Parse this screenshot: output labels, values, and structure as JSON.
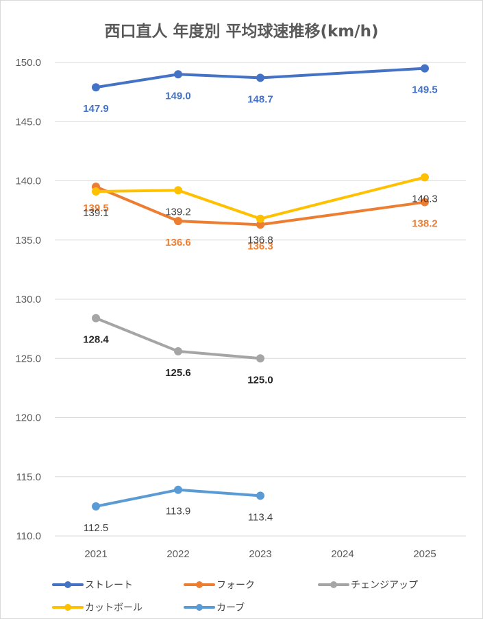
{
  "chart_data": {
    "type": "line",
    "title": "西口直人 年度別 平均球速推移(km/h)",
    "categories": [
      "2021",
      "2022",
      "2023",
      "2024",
      "2025"
    ],
    "ylim": [
      110.0,
      150.0
    ],
    "yticks": [
      "150.0",
      "145.0",
      "140.0",
      "135.0",
      "130.0",
      "125.0",
      "120.0",
      "115.0",
      "110.0"
    ],
    "grid": true,
    "legend_position": "bottom",
    "series": [
      {
        "name": "ストレート",
        "color": "#4472c4",
        "values": [
          147.9,
          149.0,
          148.7,
          null,
          149.5
        ],
        "labels": [
          "147.9",
          "149.0",
          "148.7",
          null,
          "149.5"
        ],
        "label_color": "#4472c4",
        "label_bold": true,
        "label_pos": "below"
      },
      {
        "name": "フォーク",
        "color": "#ed7d31",
        "values": [
          139.5,
          136.6,
          136.3,
          null,
          138.2
        ],
        "labels": [
          "139.5",
          "136.6",
          "136.3",
          null,
          "138.2"
        ],
        "label_color": "#ed7d31",
        "label_bold": true,
        "label_pos": "below"
      },
      {
        "name": "チェンジアップ",
        "color": "#a5a5a5",
        "values": [
          128.4,
          125.6,
          125.0,
          null,
          null
        ],
        "labels": [
          "128.4",
          "125.6",
          "125.0",
          null,
          null
        ],
        "label_color": "#262626",
        "label_bold": true,
        "label_pos": "below"
      },
      {
        "name": "カットボール",
        "color": "#ffc000",
        "values": [
          139.1,
          139.2,
          136.8,
          null,
          140.3
        ],
        "labels": [
          "139.1",
          "139.2",
          "136.8",
          null,
          "140.3"
        ],
        "label_color": "#404040",
        "label_bold": false,
        "label_pos": "below"
      },
      {
        "name": "カーブ",
        "color": "#5b9bd5",
        "values": [
          112.5,
          113.9,
          113.4,
          null,
          null
        ],
        "labels": [
          "112.5",
          "113.9",
          "113.4",
          null,
          null
        ],
        "label_color": "#404040",
        "label_bold": false,
        "label_pos": "below"
      }
    ]
  }
}
